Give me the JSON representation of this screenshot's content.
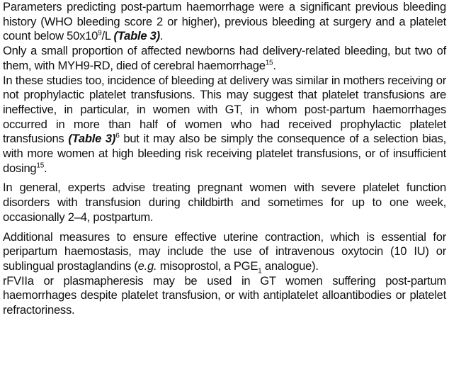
{
  "paragraphs": {
    "p1": {
      "t1": "Parameters predicting post-partum haemorrhage were a significant previous bleeding history (WHO bleeding score 2 or higher), previous bleeding at surgery and a platelet count below 50x10",
      "sup1": "9",
      "t2": "/L ",
      "ref1": "(Table 3)",
      "t3": "."
    },
    "p2": {
      "t1": "Only a small proportion of affected newborns had delivery-related bleeding, but two of them, with MYH9-RD, died of cerebral haemorrhage",
      "sup1": "15",
      "t2": "."
    },
    "p3": {
      "t1": "In these studies too, incidence of bleeding at delivery was similar in mothers receiving or not prophylactic platelet transfusions. This may suggest that platelet transfusions are ineffective, in particular, in women with GT, in whom post-partum haemorrhages occurred in more than half of women who had received prophylactic platelet transfusions ",
      "ref1": "(Table 3)",
      "sup1": "6",
      "t2": " but it may also be simply the consequence of a selection bias, with more women at high bleeding risk receiving platelet transfusions, or of insufficient dosing",
      "sup2": "15",
      "t3": "."
    },
    "p4": {
      "text": "In general, experts advise treating pregnant women with severe platelet function disorders with transfusion during childbirth and sometimes for up to one week, occasionally 2–4, postpartum."
    },
    "p5": {
      "t1": "Additional measures to ensure effective uterine contraction, which is essential for peripartum haemostasis, may include the use of intravenous oxytocin (10 IU) or sublingual prostaglandins (",
      "em1": "e.g.",
      "t2": " misoprostol, a PGE",
      "sub1": "1",
      "t3": " analogue)."
    },
    "p6": {
      "text": "rFVIIa or plasmapheresis may be used in GT women suffering post-partum haemorrhages despite platelet transfusion, or with antiplatelet alloantibodies or platelet refractoriness."
    }
  }
}
